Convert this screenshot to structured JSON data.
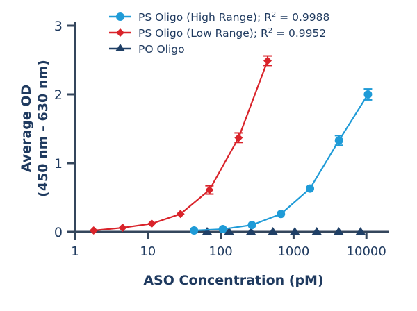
{
  "chart_data": {
    "type": "line",
    "title": "",
    "xlabel": "ASO Concentration (pM)",
    "ylabel_line1": "Average OD",
    "ylabel_line2": "(450 nm - 630 nm)",
    "x_scale": "log",
    "xlim": [
      1,
      20000
    ],
    "ylim": [
      0,
      3
    ],
    "x_ticks": [
      1,
      10,
      100,
      1000,
      10000
    ],
    "x_tick_labels": [
      "1",
      "10",
      "100",
      "1000",
      "10000"
    ],
    "y_ticks": [
      0,
      1,
      2,
      3
    ],
    "y_tick_labels": [
      "0",
      "1",
      "2",
      "3"
    ],
    "grid": false,
    "legend_placement": "top",
    "series": [
      {
        "name": "PS Oligo (High Range); R² = 0.9988",
        "legend_prefix": "PS Oligo (High Range); R",
        "legend_sup": "2",
        "legend_suffix": " = 0.9988",
        "color": "#1f9bd7",
        "marker": "circle",
        "x": [
          43,
          107,
          268,
          670,
          1680,
          4200,
          10500
        ],
        "y": [
          0.02,
          0.04,
          0.1,
          0.26,
          0.63,
          1.33,
          2.0
        ],
        "err": [
          0,
          0,
          0,
          0,
          0,
          0.07,
          0.08
        ]
      },
      {
        "name": "PS Oligo (Low Range); R² = 0.9952",
        "legend_prefix": "PS Oligo (Low Range); R",
        "legend_sup": "2",
        "legend_suffix": " = 0.9952",
        "color": "#d9232a",
        "marker": "diamond",
        "x": [
          1.8,
          4.5,
          11.3,
          28,
          70,
          176,
          440
        ],
        "y": [
          0.02,
          0.06,
          0.12,
          0.26,
          0.61,
          1.37,
          2.49
        ],
        "err": [
          0,
          0,
          0,
          0,
          0.06,
          0.07,
          0.07
        ]
      },
      {
        "name": "PO Oligo",
        "legend_prefix": "PO Oligo",
        "legend_sup": "",
        "legend_suffix": "",
        "color": "#1f3f66",
        "marker": "triangle",
        "x": [
          65,
          130,
          260,
          520,
          1040,
          2080,
          4160,
          8320
        ],
        "y": [
          0,
          0,
          0,
          0,
          0,
          0,
          0,
          0
        ],
        "err": [
          0,
          0,
          0,
          0,
          0,
          0,
          0,
          0
        ]
      }
    ]
  },
  "axis_color": "#34465c"
}
